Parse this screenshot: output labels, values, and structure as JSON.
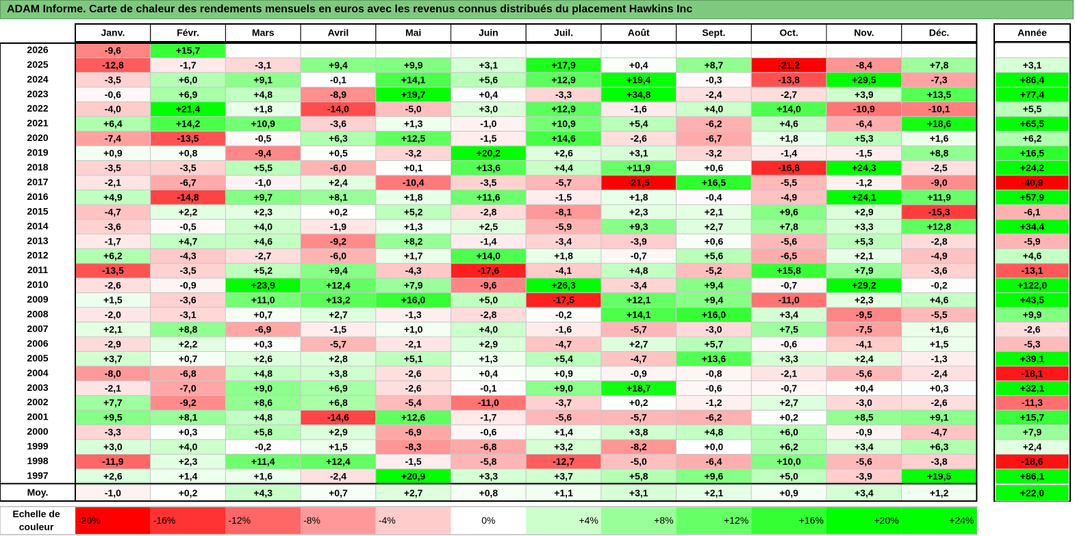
{
  "title": "ADAM Informe. Carte de chaleur des rendements mensuels en euros avec les revenus connus distribués du placement Hawkins Inc",
  "chart_data": {
    "type": "heatmap",
    "columns": [
      "Janv.",
      "Févr.",
      "Mars",
      "Avril",
      "Mai",
      "Juin",
      "Juil.",
      "Août",
      "Sept.",
      "Oct.",
      "Nov.",
      "Déc."
    ],
    "year_header": "Année",
    "rows": [
      {
        "label": "2026",
        "months": [
          "-9,6",
          "+15,7",
          "",
          "",
          "",
          "",
          "",
          "",
          "",
          "",
          "",
          ""
        ],
        "year": ""
      },
      {
        "label": "2025",
        "months": [
          "-12,8",
          "-1,7",
          "-3,1",
          "+9,4",
          "+9,9",
          "+3,1",
          "+17,9",
          "+0,4",
          "+8,7",
          "-21,2",
          "-8,4",
          "+7,8"
        ],
        "year": "+3,1"
      },
      {
        "label": "2024",
        "months": [
          "-3,5",
          "+6,0",
          "+9,1",
          "-0,1",
          "+14,1",
          "+5,6",
          "+12,9",
          "+19,4",
          "-0,3",
          "-13,8",
          "+29,5",
          "-7,3"
        ],
        "year": "+86,4"
      },
      {
        "label": "2023",
        "months": [
          "-0,6",
          "+6,9",
          "+4,8",
          "-8,9",
          "+19,7",
          "+0,4",
          "-3,3",
          "+34,8",
          "-2,4",
          "-2,7",
          "+3,9",
          "+13,5"
        ],
        "year": "+77,4"
      },
      {
        "label": "2022",
        "months": [
          "-4,0",
          "+21,4",
          "+1,8",
          "-14,0",
          "-5,0",
          "+3,0",
          "+12,9",
          "-1,6",
          "+4,0",
          "+14,0",
          "-10,9",
          "-10,1"
        ],
        "year": "+5,5"
      },
      {
        "label": "2021",
        "months": [
          "+6,4",
          "+14,2",
          "+10,9",
          "-3,6",
          "+1,3",
          "-1,0",
          "+10,9",
          "+5,4",
          "-6,2",
          "+4,6",
          "-6,4",
          "+18,6"
        ],
        "year": "+65,5"
      },
      {
        "label": "2020",
        "months": [
          "-7,4",
          "-13,5",
          "-0,5",
          "+6,3",
          "+12,5",
          "-1,5",
          "+14,6",
          "-2,6",
          "-6,7",
          "+1,8",
          "+5,3",
          "+1,6"
        ],
        "year": "+6,2"
      },
      {
        "label": "2019",
        "months": [
          "+0,9",
          "+0,8",
          "-9,4",
          "+0,5",
          "-3,2",
          "+20,2",
          "+2,6",
          "+3,1",
          "-3,2",
          "-1,4",
          "-1,5",
          "+8,8"
        ],
        "year": "+16,5"
      },
      {
        "label": "2018",
        "months": [
          "-3,5",
          "-3,5",
          "+5,5",
          "-6,0",
          "+0,1",
          "+13,6",
          "+4,4",
          "+11,9",
          "+0,6",
          "-16,8",
          "+24,3",
          "-2,5"
        ],
        "year": "+24,2"
      },
      {
        "label": "2017",
        "months": [
          "-2,1",
          "-6,7",
          "-1,0",
          "+2,4",
          "-10,4",
          "-3,5",
          "-5,7",
          "-21,5",
          "+16,5",
          "-5,5",
          "-1,2",
          "-9,0"
        ],
        "year": "-40,9"
      },
      {
        "label": "2016",
        "months": [
          "+4,9",
          "-14,8",
          "+9,7",
          "+8,1",
          "+1,8",
          "+11,6",
          "-1,5",
          "+1,8",
          "-0,4",
          "-4,9",
          "+24,1",
          "+11,9"
        ],
        "year": "+57,9"
      },
      {
        "label": "2015",
        "months": [
          "-4,7",
          "+2,2",
          "+2,3",
          "+0,2",
          "+5,2",
          "-2,8",
          "-8,1",
          "+2,3",
          "+2,1",
          "+9,6",
          "+2,9",
          "-15,3"
        ],
        "year": "-6,1"
      },
      {
        "label": "2014",
        "months": [
          "-3,6",
          "-0,5",
          "+4,0",
          "-1,9",
          "+1,3",
          "+2,5",
          "-5,9",
          "+9,3",
          "+2,7",
          "+7,8",
          "+3,3",
          "+12,8"
        ],
        "year": "+34,4"
      },
      {
        "label": "2013",
        "months": [
          "-1,7",
          "+4,7",
          "+4,6",
          "-9,2",
          "+8,2",
          "-1,4",
          "-3,4",
          "-3,9",
          "+0,6",
          "-5,6",
          "+5,3",
          "-2,8"
        ],
        "year": "-5,9"
      },
      {
        "label": "2012",
        "months": [
          "+6,2",
          "-4,3",
          "-2,7",
          "-6,0",
          "+1,7",
          "+14,0",
          "+1,8",
          "-0,7",
          "+5,6",
          "-6,5",
          "+2,1",
          "-4,9"
        ],
        "year": "+4,6"
      },
      {
        "label": "2011",
        "months": [
          "-13,5",
          "-3,5",
          "+5,2",
          "+9,4",
          "-4,3",
          "-17,6",
          "-4,1",
          "+4,8",
          "-5,2",
          "+15,8",
          "+7,9",
          "-3,6"
        ],
        "year": "-13,1"
      },
      {
        "label": "2010",
        "months": [
          "-2,6",
          "-0,9",
          "+23,9",
          "+12,4",
          "+7,9",
          "-9,6",
          "+26,3",
          "-3,4",
          "+9,4",
          "-0,7",
          "+29,2",
          "-0,2"
        ],
        "year": "+122,0"
      },
      {
        "label": "2009",
        "months": [
          "+1,5",
          "-3,6",
          "+11,0",
          "+13,2",
          "+16,0",
          "+5,0",
          "-17,5",
          "+12,1",
          "+9,4",
          "-11,0",
          "+2,3",
          "+4,6"
        ],
        "year": "+43,5"
      },
      {
        "label": "2008",
        "months": [
          "-2,0",
          "-3,1",
          "+0,7",
          "+2,7",
          "-1,3",
          "-2,8",
          "-0,2",
          "+14,1",
          "+16,0",
          "+3,4",
          "-9,5",
          "-5,5"
        ],
        "year": "+9,9"
      },
      {
        "label": "2007",
        "months": [
          "+2,1",
          "+8,8",
          "-6,9",
          "-1,5",
          "+1,0",
          "+4,0",
          "-1,6",
          "-5,7",
          "-3,0",
          "+7,5",
          "-7,5",
          "+1,6"
        ],
        "year": "-2,6"
      },
      {
        "label": "2006",
        "months": [
          "-2,9",
          "+2,2",
          "+0,3",
          "-5,7",
          "-2,1",
          "+2,9",
          "-4,7",
          "+2,7",
          "+5,7",
          "-0,6",
          "-4,1",
          "+1,5"
        ],
        "year": "-5,3"
      },
      {
        "label": "2005",
        "months": [
          "+3,7",
          "+0,7",
          "+2,6",
          "+2,8",
          "+5,1",
          "+1,3",
          "+5,4",
          "-4,7",
          "+13,6",
          "+3,3",
          "+2,4",
          "-1,3"
        ],
        "year": "+39,1"
      },
      {
        "label": "2004",
        "months": [
          "-8,0",
          "-6,8",
          "+4,8",
          "+3,8",
          "-2,6",
          "+0,4",
          "+0,9",
          "-0,9",
          "-0,8",
          "-2,1",
          "-5,6",
          "-2,4"
        ],
        "year": "-18,1"
      },
      {
        "label": "2003",
        "months": [
          "-2,1",
          "-7,0",
          "+9,0",
          "+6,9",
          "-2,6",
          "-0,1",
          "+9,0",
          "+18,7",
          "-0,6",
          "-0,7",
          "+0,4",
          "+0,3"
        ],
        "year": "+32,1"
      },
      {
        "label": "2002",
        "months": [
          "+7,7",
          "-9,2",
          "+8,6",
          "+6,8",
          "-5,4",
          "-11,0",
          "-3,7",
          "+0,2",
          "-1,2",
          "+2,7",
          "-3,0",
          "-2,6"
        ],
        "year": "-11,3"
      },
      {
        "label": "2001",
        "months": [
          "+9,5",
          "+8,1",
          "+4,8",
          "-14,6",
          "+12,6",
          "-1,7",
          "-5,6",
          "-5,7",
          "-6,2",
          "+0,2",
          "+8,5",
          "+9,1"
        ],
        "year": "+15,7"
      },
      {
        "label": "2000",
        "months": [
          "-3,3",
          "+0,3",
          "+5,8",
          "+2,9",
          "-6,9",
          "-0,6",
          "+1,4",
          "+3,8",
          "+4,8",
          "+6,0",
          "-0,9",
          "-4,7"
        ],
        "year": "+7,9"
      },
      {
        "label": "1999",
        "months": [
          "+3,0",
          "+4,0",
          "-0,2",
          "+1,5",
          "-8,3",
          "-6,8",
          "+3,2",
          "-8,2",
          "+0,0",
          "+6,2",
          "+3,4",
          "+6,3"
        ],
        "year": "+2,4"
      },
      {
        "label": "1998",
        "months": [
          "-11,9",
          "+2,3",
          "+11,4",
          "+12,4",
          "-1,5",
          "-5,8",
          "-12,7",
          "-5,0",
          "-6,4",
          "+10,0",
          "-5,6",
          "-3,8"
        ],
        "year": "-18,6"
      },
      {
        "label": "1997",
        "months": [
          "+2,6",
          "+1,4",
          "+1,6",
          "-2,4",
          "+20,9",
          "+3,3",
          "+3,7",
          "+5,8",
          "+9,6",
          "+5,0",
          "-3,9",
          "+19,5"
        ],
        "year": "+86,1"
      }
    ],
    "average": {
      "label": "Moy.",
      "months": [
        "-1,0",
        "+0,2",
        "+4,3",
        "+0,7",
        "+2,7",
        "+0,8",
        "+1,1",
        "+3,1",
        "+2,1",
        "+0,9",
        "+3,4",
        "+1,2"
      ],
      "year": "+22,0"
    },
    "scale": {
      "label_line1": "Echelle de",
      "label_line2": "couleur",
      "steps": [
        {
          "label": "-20%",
          "color": "#ff0000"
        },
        {
          "label": "-16%",
          "color": "#ff3333"
        },
        {
          "label": "-12%",
          "color": "#ff6666"
        },
        {
          "label": "-8%",
          "color": "#ff9999"
        },
        {
          "label": "-4%",
          "color": "#ffcccc"
        },
        {
          "label": "0%",
          "color": "#ffffff"
        },
        {
          "label": "+4%",
          "color": "#ccffcc"
        },
        {
          "label": "+8%",
          "color": "#99ff99"
        },
        {
          "label": "+12%",
          "color": "#66ff66"
        },
        {
          "label": "+16%",
          "color": "#33ff33"
        },
        {
          "label": "+20%",
          "color": "#00ff00"
        },
        {
          "label": "+24%",
          "color": "#00ff00"
        }
      ]
    },
    "color_range_percent": [
      -20,
      20
    ],
    "colors": {
      "negative": "#ff0000",
      "neutral": "#ffffff",
      "positive": "#00ff00",
      "title_bar": "#7fc97f"
    }
  }
}
